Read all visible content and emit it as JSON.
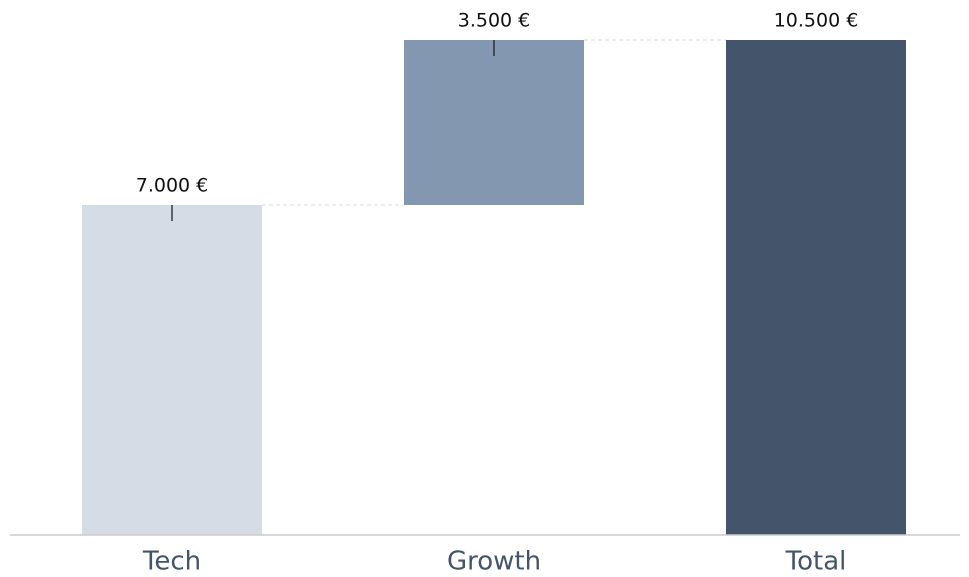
{
  "chart_data": {
    "type": "waterfall",
    "categories": [
      "Tech",
      "Growth",
      "Total"
    ],
    "values": [
      7000,
      3500,
      10500
    ],
    "value_labels": [
      "7.000 €",
      "3.500 €",
      "10.500 €"
    ],
    "colors": [
      "#d5dce6",
      "#8497b0",
      "#44546a"
    ]
  }
}
